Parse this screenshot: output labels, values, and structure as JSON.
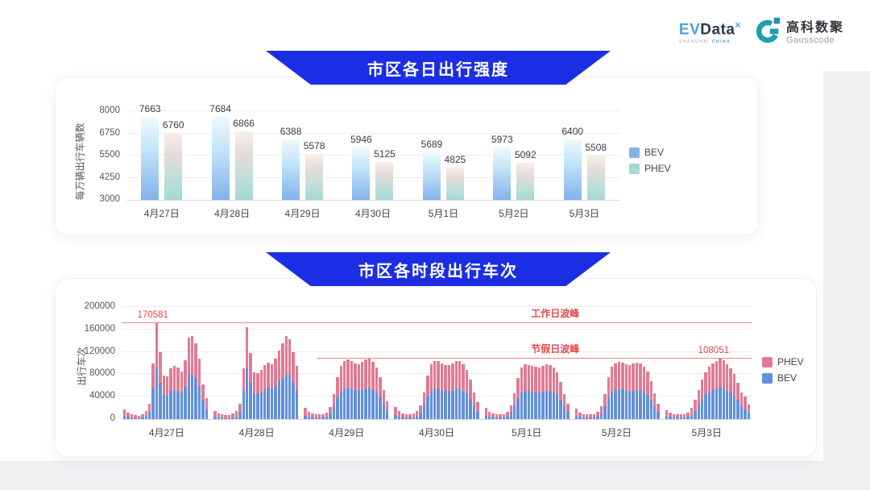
{
  "logo": {
    "evdata_ev": "EV",
    "evdata_rest": "Data",
    "evdata_sup": "×",
    "evdata_sub_gray": "SHANGHAI",
    "evdata_sub_blue": "CHINA",
    "gausscode_cn": "高科数聚",
    "gausscode_en": "Gausscode",
    "icon_color": "#1e9eae"
  },
  "banner_color": "#1c2ee4",
  "chart_data": [
    {
      "type": "bar",
      "title": "市区各日出行强度",
      "ylabel": "每万辆出行车辆数",
      "ylim": [
        3000,
        8000
      ],
      "yticks": [
        8000,
        6750,
        5500,
        4250,
        3000
      ],
      "grid": true,
      "legend_position": "right",
      "legend": [
        {
          "label": "BEV",
          "color": "#82b2ea"
        },
        {
          "label": "PHEV",
          "color": "#a3d8d5"
        }
      ],
      "categories": [
        "4月27日",
        "4月28日",
        "4月29日",
        "4月30日",
        "5月1日",
        "5月2日",
        "5月3日"
      ],
      "series": [
        {
          "name": "BEV",
          "values": [
            7663,
            7684,
            6388,
            5946,
            5689,
            5973,
            6400
          ]
        },
        {
          "name": "PHEV",
          "values": [
            6760,
            6866,
            5578,
            5125,
            4825,
            5092,
            5508
          ]
        }
      ]
    },
    {
      "type": "stacked-bar",
      "title": "市区各时段出行车次",
      "ylabel": "出行车次",
      "ylim": [
        0,
        200000
      ],
      "yticks": [
        200000,
        160000,
        120000,
        80000,
        40000,
        0
      ],
      "grid": true,
      "legend_position": "right",
      "legend": [
        {
          "label": "PHEV",
          "color": "#e27a93"
        },
        {
          "label": "BEV",
          "color": "#6290d9"
        }
      ],
      "annotations": {
        "workday_peak": {
          "label": "工作日波峰",
          "value_label": "170581",
          "value": 170581,
          "span_start_pct": 0
        },
        "holiday_peak": {
          "label": "节假日波峰",
          "value_label": "108051",
          "value": 108051,
          "span_start_pct": 31
        }
      },
      "days": [
        {
          "date": "4月27日",
          "bev": [
            6000,
            4000,
            3000,
            2000,
            2000,
            3000,
            5000,
            13000,
            55000,
            92000,
            65000,
            43000,
            42000,
            50000,
            52000,
            51000,
            47000,
            58000,
            80000,
            81000,
            74000,
            59000,
            34000,
            17000
          ],
          "phev": [
            12000,
            7000,
            6000,
            5000,
            4000,
            6000,
            9000,
            15000,
            45000,
            78581,
            54000,
            35000,
            34000,
            40000,
            43000,
            41000,
            38000,
            47000,
            66000,
            67000,
            61000,
            49000,
            28000,
            21000
          ]
        },
        {
          "date": "4月28日",
          "bev": [
            5000,
            3000,
            3000,
            2000,
            2000,
            3000,
            5000,
            13000,
            50000,
            90000,
            65000,
            46000,
            45000,
            48000,
            53000,
            56000,
            54000,
            59000,
            67000,
            74000,
            81000,
            79000,
            66000,
            52000
          ],
          "phev": [
            10000,
            7000,
            5000,
            5000,
            5000,
            7000,
            10000,
            15000,
            40000,
            74000,
            53000,
            38000,
            37000,
            40000,
            43000,
            45000,
            44000,
            49000,
            55000,
            61000,
            67000,
            64000,
            54000,
            43000
          ]
        },
        {
          "date": "4月29日",
          "bev": [
            6000,
            4000,
            3000,
            3000,
            3000,
            3000,
            4000,
            10000,
            23000,
            39000,
            49000,
            54000,
            55000,
            54000,
            52000,
            51000,
            53000,
            55000,
            56000,
            53000,
            48000,
            39000,
            27000,
            14000
          ],
          "phev": [
            14000,
            9000,
            7000,
            5000,
            5000,
            6000,
            8000,
            12000,
            22000,
            36000,
            46000,
            49000,
            51000,
            50000,
            48000,
            47000,
            49000,
            51000,
            52000,
            49000,
            44000,
            36000,
            25000,
            18000
          ]
        },
        {
          "date": "4月30日",
          "bev": [
            7000,
            5000,
            3000,
            3000,
            3000,
            3000,
            5000,
            11000,
            25000,
            41000,
            51000,
            54000,
            54000,
            52000,
            50000,
            50000,
            51000,
            54000,
            54000,
            51000,
            46000,
            36000,
            25000,
            13000
          ],
          "phev": [
            15000,
            9000,
            7000,
            6000,
            5000,
            7000,
            9000,
            14000,
            23000,
            37000,
            47000,
            50000,
            49000,
            48000,
            47000,
            46000,
            48000,
            49000,
            50000,
            47000,
            42000,
            34000,
            23000,
            17000
          ]
        },
        {
          "date": "5月1日",
          "bev": [
            6000,
            4000,
            3000,
            3000,
            3000,
            3000,
            4000,
            11000,
            24000,
            38000,
            48000,
            51000,
            50000,
            49000,
            48000,
            48000,
            49000,
            51000,
            50000,
            48000,
            44000,
            34000,
            23000,
            13000
          ],
          "phev": [
            14000,
            9000,
            7000,
            5000,
            5000,
            6000,
            9000,
            13000,
            22000,
            36000,
            44000,
            47000,
            47000,
            46000,
            45000,
            44000,
            46000,
            47000,
            47000,
            44000,
            40000,
            32000,
            22000,
            15000
          ]
        },
        {
          "date": "5月2日",
          "bev": [
            6000,
            4000,
            3000,
            3000,
            3000,
            3000,
            4000,
            10000,
            23000,
            39000,
            49000,
            52000,
            53000,
            53000,
            51000,
            50000,
            51000,
            53000,
            52000,
            49000,
            44000,
            35000,
            24000,
            13000
          ],
          "phev": [
            13000,
            8000,
            6000,
            5000,
            5000,
            6000,
            9000,
            13000,
            22000,
            36000,
            45000,
            48000,
            49000,
            48000,
            47000,
            46000,
            48000,
            48000,
            48000,
            45000,
            41000,
            33000,
            22000,
            15000
          ]
        },
        {
          "date": "5月3日",
          "bev": [
            5000,
            4000,
            3000,
            3000,
            3000,
            3000,
            4000,
            6000,
            15000,
            27000,
            36000,
            44000,
            49000,
            52000,
            54000,
            58000,
            55000,
            51000,
            47000,
            42000,
            34000,
            25000,
            18000,
            12000
          ],
          "phev": [
            11000,
            7000,
            6000,
            5000,
            5000,
            6000,
            8000,
            14000,
            19000,
            25000,
            34000,
            40000,
            45000,
            48000,
            50000,
            50051,
            50000,
            47000,
            43000,
            38000,
            31000,
            23000,
            22000,
            14000
          ]
        }
      ]
    }
  ]
}
